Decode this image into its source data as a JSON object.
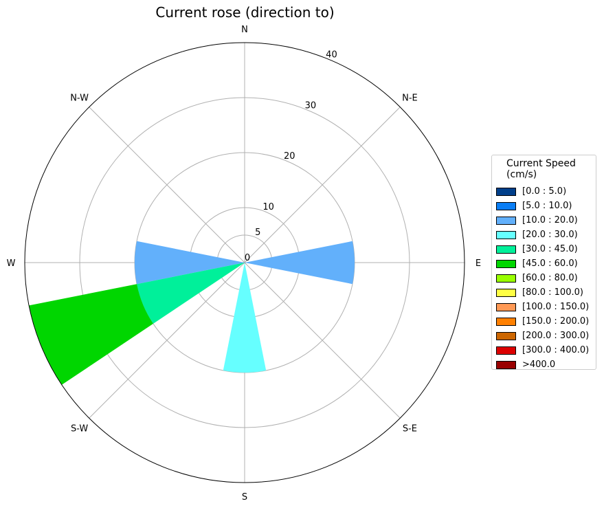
{
  "chart_data": {
    "type": "rose",
    "title": "Current rose (direction to)",
    "direction_labels": [
      "N",
      "N-E",
      "E",
      "S-E",
      "S",
      "S-W",
      "W",
      "N-W"
    ],
    "radial_ticks": [
      0,
      5,
      10,
      20,
      30,
      40
    ],
    "rlim": [
      0,
      40
    ],
    "grid": true,
    "legend": {
      "title": "Current Speed\n(cm/s)",
      "placement": "right",
      "entries": [
        {
          "label": "[0.0 : 5.0)",
          "color": "#003f8a"
        },
        {
          "label": "[5.0 : 10.0)",
          "color": "#0a7ef5"
        },
        {
          "label": "[10.0 : 20.0)",
          "color": "#62b0fb"
        },
        {
          "label": "[20.0 : 30.0)",
          "color": "#66ffff"
        },
        {
          "label": "[30.0 : 45.0)",
          "color": "#00f09a"
        },
        {
          "label": "[45.0 : 60.0)",
          "color": "#00d600"
        },
        {
          "label": "[60.0 : 80.0)",
          "color": "#99ff00"
        },
        {
          "label": "[80.0 : 100.0)",
          "color": "#ffff44"
        },
        {
          "label": "[100.0 : 150.0)",
          "color": "#ff9955"
        },
        {
          "label": "[150.0 : 200.0)",
          "color": "#ff8000"
        },
        {
          "label": "[200.0 : 300.0)",
          "color": "#cc6600"
        },
        {
          "label": "[300.0 : 400.0)",
          "color": "#dd0000"
        },
        {
          "label": ">400.0",
          "color": "#990000"
        }
      ]
    },
    "bars": [
      {
        "direction_deg": 90,
        "speed_bin": "[10.0 : 20.0)",
        "r_inner": 0,
        "r_outer": 20
      },
      {
        "direction_deg": 180,
        "speed_bin": "[20.0 : 30.0)",
        "r_inner": 0,
        "r_outer": 20
      },
      {
        "direction_deg": 270,
        "speed_bin": "[10.0 : 20.0)",
        "r_inner": 0,
        "r_outer": 20
      },
      {
        "direction_deg": 247.5,
        "speed_bin": "[30.0 : 45.0)",
        "r_inner": 0,
        "r_outer": 20
      },
      {
        "direction_deg": 247.5,
        "speed_bin": "[45.0 : 60.0)",
        "r_inner": 20,
        "r_outer": 40
      }
    ]
  }
}
